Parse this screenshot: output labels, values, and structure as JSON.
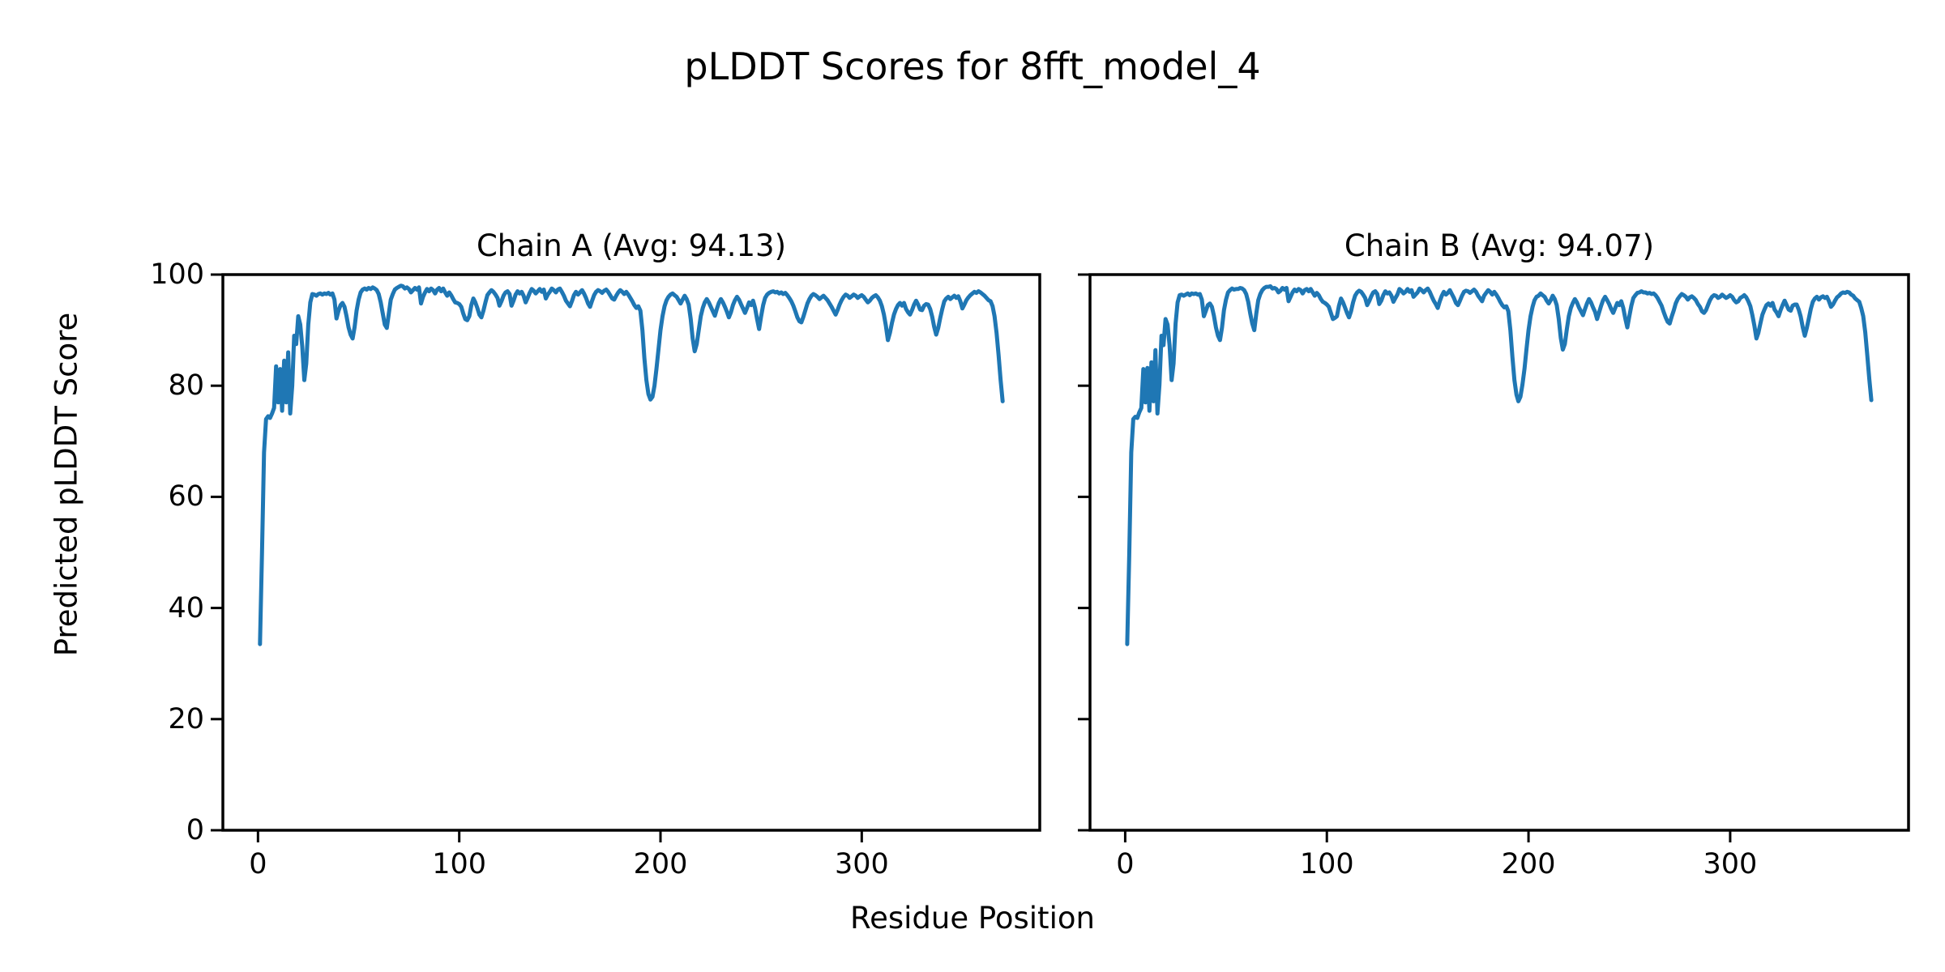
{
  "figure": {
    "title": "pLDDT Scores for 8fft_model_4",
    "xlabel": "Residue Position",
    "ylabel": "Predicted pLDDT Score",
    "background_color": "#ffffff",
    "text_color": "#000000"
  },
  "chart_data": [
    {
      "type": "line",
      "title": "Chain A (Avg: 94.13)",
      "chain": "A",
      "average_plddt": 94.13,
      "line_color": "#1f77b4",
      "xlim": [
        -17.45,
        388.45
      ],
      "ylim": [
        0,
        100
      ],
      "xticks": [
        0,
        100,
        200,
        300
      ],
      "yticks": [
        0,
        20,
        40,
        60,
        80,
        100
      ],
      "grid": false,
      "legend": "none",
      "x_start": 1,
      "x_step": 1,
      "values": [
        33.5,
        50,
        68,
        74,
        74.5,
        74.2,
        75,
        76,
        83.5,
        77,
        83,
        75.5,
        84.5,
        77,
        86,
        75,
        80,
        89,
        87.5,
        92.5,
        91,
        87,
        81,
        84,
        91,
        95,
        96.5,
        96.4,
        96.2,
        96.5,
        96.6,
        96.4,
        96.6,
        96.5,
        96.7,
        96.4,
        96.6,
        95.5,
        92.1,
        93.5,
        94.5,
        94.9,
        94.2,
        92.5,
        90.5,
        89.2,
        88.5,
        90.5,
        93.5,
        95.5,
        96.8,
        97.3,
        97.5,
        97.3,
        97.6,
        97.4,
        97.7,
        97.5,
        97.2,
        96.5,
        95,
        93,
        91,
        90.4,
        93,
        95.5,
        96.5,
        97.3,
        97.6,
        97.8,
        98,
        97.9,
        97.5,
        97.7,
        97.4,
        96.8,
        97.2,
        97.6,
        97.3,
        97.7,
        94.8,
        96,
        96.8,
        97.4,
        97,
        97.5,
        97.2,
        96.6,
        97.3,
        97.6,
        97,
        97.5,
        96.8,
        96.2,
        96.8,
        96.3,
        95.6,
        95,
        94.9,
        94.7,
        94.2,
        93,
        92,
        91.8,
        92.5,
        94.5,
        95.7,
        95,
        94,
        92.8,
        92.3,
        93.5,
        95,
        96.3,
        96.8,
        97.2,
        96.9,
        96.4,
        95.8,
        94.4,
        95.2,
        96.2,
        96.8,
        97,
        96.5,
        94.4,
        95.3,
        96.4,
        97,
        96.6,
        96.9,
        96.2,
        95,
        95.8,
        96.7,
        97.4,
        97.1,
        96.6,
        97,
        97.4,
        96.9,
        97.3,
        95.7,
        96.4,
        96.9,
        97.5,
        97.2,
        96.8,
        97.3,
        97.5,
        96.9,
        96.2,
        95.3,
        94.8,
        94.3,
        95.2,
        96.3,
        96.9,
        96.4,
        96.8,
        97.2,
        96.6,
        95.8,
        94.8,
        94.2,
        95.3,
        96.3,
        96.9,
        97.2,
        97,
        96.7,
        97.1,
        97.3,
        96.9,
        96.3,
        95.7,
        95.5,
        96.2,
        96.8,
        97.2,
        96.9,
        96.5,
        96.9,
        96.4,
        95.8,
        95.2,
        94.5,
        94,
        94.3,
        93.5,
        90,
        85,
        81,
        78.5,
        77.5,
        78,
        80,
        83,
        86.5,
        90,
        92.5,
        94.3,
        95.4,
        96,
        96.4,
        96.6,
        96.3,
        96,
        95.4,
        94.8,
        95.5,
        96.2,
        95.6,
        94.6,
        92,
        88.5,
        86.2,
        87.5,
        90,
        92.5,
        94,
        95,
        95.6,
        95,
        94.2,
        93.4,
        92.6,
        93.8,
        94.9,
        95.6,
        95,
        94.2,
        93.3,
        92.3,
        93.2,
        94.5,
        95.4,
        96,
        95.5,
        94.7,
        93.9,
        93.1,
        94,
        95,
        94.5,
        95.3,
        94,
        92,
        90.2,
        92.5,
        94.5,
        95.8,
        96.4,
        96.7,
        96.9,
        97,
        96.8,
        96.9,
        96.6,
        96.8,
        96.5,
        96.7,
        96.3,
        95.8,
        95.2,
        94.4,
        93.4,
        92.3,
        91.6,
        91.4,
        92.4,
        93.6,
        94.8,
        95.6,
        96.2,
        96.5,
        96.3,
        96,
        95.6,
        95.9,
        96.2,
        95.8,
        95.4,
        94.8,
        94.2,
        93.5,
        92.8,
        93.6,
        94.6,
        95.4,
        96,
        96.4,
        96.2,
        95.8,
        96.1,
        96.4,
        96.2,
        95.8,
        96.1,
        96.3,
        96,
        95.5,
        95,
        95.3,
        95.8,
        96.1,
        96.3,
        95.9,
        95.3,
        94.3,
        92.8,
        90.8,
        88.2,
        89.5,
        91.3,
        92.8,
        93.8,
        94.5,
        94.9,
        94.4,
        94.9,
        93.8,
        93.2,
        92.8,
        93.6,
        94.6,
        95.3,
        94.6,
        93.7,
        93.6,
        94.4,
        94.7,
        94.6,
        93.8,
        92.4,
        90.6,
        89.2,
        90.4,
        92.2,
        93.8,
        95.2,
        95.7,
        96,
        95.6,
        95.9,
        96.2,
        95.8,
        96.1,
        95.2,
        93.9,
        94.6,
        95.4,
        95.9,
        96.3,
        96.6,
        96.9,
        96.7,
        97,
        96.8,
        96.5,
        96.2,
        95.8,
        95.4,
        95.2,
        94.3,
        92.5,
        89.5,
        85.5,
        81,
        77.2
      ]
    },
    {
      "type": "line",
      "title": "Chain B (Avg: 94.07)",
      "chain": "B",
      "average_plddt": 94.07,
      "line_color": "#1f77b4",
      "xlim": [
        -17.45,
        388.45
      ],
      "ylim": [
        0,
        100
      ],
      "xticks": [
        0,
        100,
        200,
        300
      ],
      "yticks": [
        0,
        20,
        40,
        60,
        80,
        100
      ],
      "grid": false,
      "legend": "none",
      "x_start": 1,
      "x_step": 1,
      "values": [
        33.5,
        49.5,
        68,
        74,
        74.4,
        74.2,
        75.2,
        76,
        83,
        77,
        83.2,
        75.5,
        84.2,
        77.2,
        86.4,
        75,
        80.2,
        89,
        87.3,
        92,
        91,
        87.2,
        81,
        84,
        91.2,
        95,
        96.3,
        96.4,
        96.2,
        96.4,
        96.6,
        96.3,
        96.6,
        96.5,
        96.6,
        96.4,
        96.5,
        95.5,
        92.5,
        93.5,
        94.5,
        94.8,
        94.2,
        92.6,
        90.5,
        89,
        88.2,
        90.5,
        93.6,
        95.5,
        96.8,
        97.2,
        97.5,
        97.3,
        97.4,
        97.4,
        97.6,
        97.5,
        97.2,
        96.5,
        95.1,
        93,
        91.2,
        90,
        93,
        95.4,
        96.5,
        97.2,
        97.6,
        97.8,
        97.8,
        97.9,
        97.5,
        97.6,
        97.4,
        96.8,
        97.1,
        97.6,
        97.3,
        97.6,
        95.2,
        96,
        96.8,
        97.3,
        97,
        97.4,
        97.2,
        96.6,
        97.2,
        97.4,
        97,
        97.4,
        96.8,
        96.2,
        96.7,
        96.3,
        95.6,
        95.1,
        94.9,
        94.6,
        94.2,
        93.1,
        92,
        92.2,
        92.5,
        94.4,
        95.7,
        95,
        94.1,
        93.1,
        92.3,
        93.4,
        95,
        96.2,
        96.8,
        97.1,
        96.9,
        96.4,
        95.8,
        94.5,
        95.2,
        96.1,
        96.8,
        97,
        96.5,
        94.7,
        95.3,
        96.3,
        97,
        96.6,
        96.8,
        96.2,
        95.1,
        95.8,
        96.4,
        97.4,
        97.1,
        96.6,
        96.9,
        97.4,
        96.9,
        97.2,
        96,
        96.4,
        96.8,
        97.5,
        97.2,
        96.8,
        97.2,
        97.5,
        96.9,
        96.1,
        95.3,
        94.7,
        94,
        95.2,
        96.2,
        96.9,
        96.4,
        96.7,
        97.2,
        96.5,
        95.8,
        94.9,
        94.5,
        95.3,
        96.2,
        96.9,
        97.1,
        97,
        96.7,
        97,
        97.3,
        96.9,
        96.2,
        95.7,
        95.2,
        96.2,
        96.7,
        97.2,
        96.9,
        96.4,
        96.9,
        96.4,
        95.8,
        95.1,
        94.5,
        94.1,
        94.3,
        93.4,
        90,
        85.2,
        81,
        78.4,
        77.2,
        78,
        80.2,
        83,
        86.6,
        90,
        92.5,
        94.2,
        95.4,
        96,
        96.2,
        96.6,
        96.3,
        96,
        95.3,
        94.8,
        95.4,
        96.2,
        95.6,
        94.5,
        92,
        88.6,
        86.5,
        87.5,
        90.2,
        92.5,
        94,
        94.9,
        95.6,
        95,
        94.1,
        93.4,
        92.7,
        93.8,
        94.8,
        95.6,
        95,
        94.1,
        93.3,
        92,
        93.2,
        94.4,
        95.4,
        96,
        95.4,
        94.7,
        93.8,
        93.1,
        94,
        94.9,
        94.5,
        95.2,
        94,
        92.1,
        90.5,
        92.5,
        94.4,
        95.8,
        96.3,
        96.7,
        96.8,
        97,
        96.8,
        96.8,
        96.6,
        96.7,
        96.5,
        96.6,
        96.3,
        95.8,
        95.1,
        94.4,
        93.3,
        92.3,
        91.5,
        91.2,
        92.4,
        93.5,
        94.8,
        95.6,
        96.1,
        96.5,
        96.3,
        96,
        95.5,
        95.9,
        96.1,
        95.8,
        95.4,
        94.7,
        94.2,
        93.4,
        93.1,
        93.6,
        94.5,
        95.4,
        96,
        96.3,
        96.2,
        95.8,
        96,
        96.4,
        96.1,
        95.8,
        96,
        96.3,
        96,
        95.4,
        95,
        95.2,
        95.8,
        96,
        96.3,
        95.9,
        95.2,
        94.3,
        92.7,
        90.8,
        88.5,
        89.5,
        91.2,
        92.8,
        93.7,
        94.5,
        94.8,
        94.4,
        94.9,
        93.7,
        93.2,
        92.5,
        93.6,
        94.5,
        95.3,
        94.5,
        93.7,
        93.5,
        94.4,
        94.6,
        94.6,
        93.7,
        92.4,
        90.5,
        89,
        90.4,
        92.1,
        93.8,
        95.1,
        95.7,
        96,
        95.5,
        95.9,
        96.1,
        95.8,
        96,
        95.2,
        94.2,
        94.6,
        95.3,
        95.9,
        96.2,
        96.6,
        96.8,
        96.7,
        96.9,
        96.8,
        96.4,
        96.2,
        95.7,
        95.4,
        95.1,
        94,
        92.5,
        89.6,
        85.5,
        81.2,
        77.4
      ]
    }
  ]
}
